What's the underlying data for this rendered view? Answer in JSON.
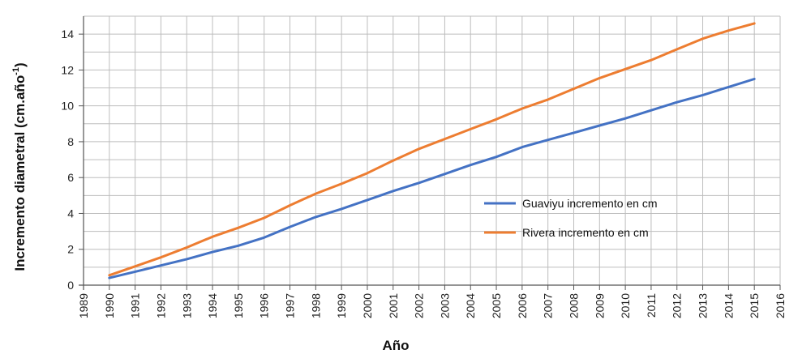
{
  "chart_data": {
    "type": "line",
    "title": "",
    "xlabel": "Año",
    "ylabel_main": "Incremento diametral (cm.año",
    "ylabel_sup": "-1",
    "ylabel_end": ")",
    "xlim": [
      1989,
      2016
    ],
    "ylim": [
      0,
      15
    ],
    "y_ticks": [
      0,
      2,
      4,
      6,
      8,
      10,
      12,
      14
    ],
    "x_ticks": [
      1989,
      1990,
      1991,
      1992,
      1993,
      1994,
      1995,
      1996,
      1997,
      1998,
      1999,
      2000,
      2001,
      2002,
      2003,
      2004,
      2005,
      2006,
      2007,
      2008,
      2009,
      2010,
      2011,
      2012,
      2013,
      2014,
      2015,
      2016
    ],
    "grid": true,
    "legend_position": "center-right",
    "x": [
      1990,
      1991,
      1992,
      1993,
      1994,
      1995,
      1996,
      1997,
      1998,
      1999,
      2000,
      2001,
      2002,
      2003,
      2004,
      2005,
      2006,
      2007,
      2008,
      2009,
      2010,
      2011,
      2012,
      2013,
      2014,
      2015
    ],
    "series": [
      {
        "name": "Guaviyu incremento en cm",
        "color": "#4472C4",
        "values": [
          0.4,
          0.75,
          1.1,
          1.45,
          1.85,
          2.2,
          2.65,
          3.25,
          3.8,
          4.25,
          4.75,
          5.25,
          5.7,
          6.2,
          6.7,
          7.15,
          7.7,
          8.1,
          8.5,
          8.9,
          9.3,
          9.75,
          10.2,
          10.6,
          11.05,
          11.5
        ]
      },
      {
        "name": "Rivera incremento en cm",
        "color": "#ED7D31",
        "values": [
          0.55,
          1.05,
          1.55,
          2.1,
          2.7,
          3.2,
          3.75,
          4.45,
          5.1,
          5.65,
          6.25,
          6.95,
          7.6,
          8.15,
          8.7,
          9.25,
          9.85,
          10.35,
          10.95,
          11.55,
          12.05,
          12.55,
          13.15,
          13.75,
          14.2,
          14.6
        ]
      }
    ]
  }
}
